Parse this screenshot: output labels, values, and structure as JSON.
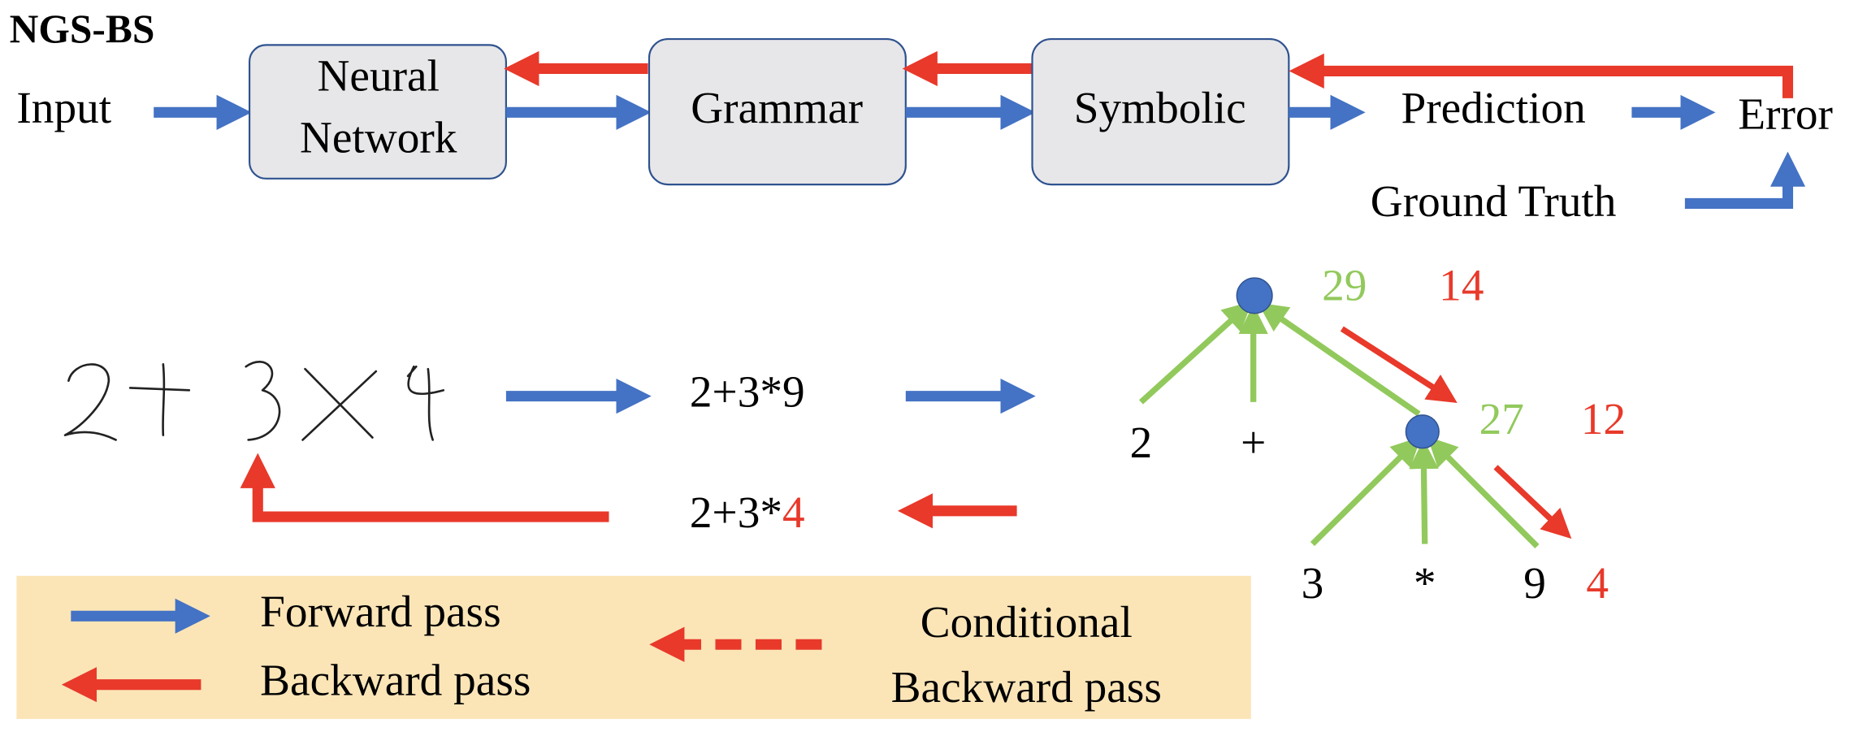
{
  "title": "NGS-BS",
  "pipeline": {
    "input": "Input",
    "nodes": [
      {
        "lines": [
          "Neural",
          "Network"
        ]
      },
      {
        "lines": [
          "Grammar"
        ]
      },
      {
        "lines": [
          "Symbolic"
        ]
      }
    ],
    "prediction": "Prediction",
    "error": "Error",
    "ground_truth": "Ground Truth"
  },
  "example": {
    "predicted": "2+3*9",
    "corrected": {
      "prefix": "2+3*",
      "fix": "4"
    }
  },
  "tree": {
    "root": {
      "value": "29",
      "backward": "14"
    },
    "root_leaves": [
      "2",
      "+"
    ],
    "sub": {
      "value": "27",
      "backward": "12"
    },
    "sub_leaves": [
      "3",
      "*",
      "9"
    ],
    "sub_fix": "4"
  },
  "legend": {
    "forward": "Forward pass",
    "backward": "Backward pass",
    "conditional": [
      "Conditional",
      "Backward pass"
    ]
  }
}
